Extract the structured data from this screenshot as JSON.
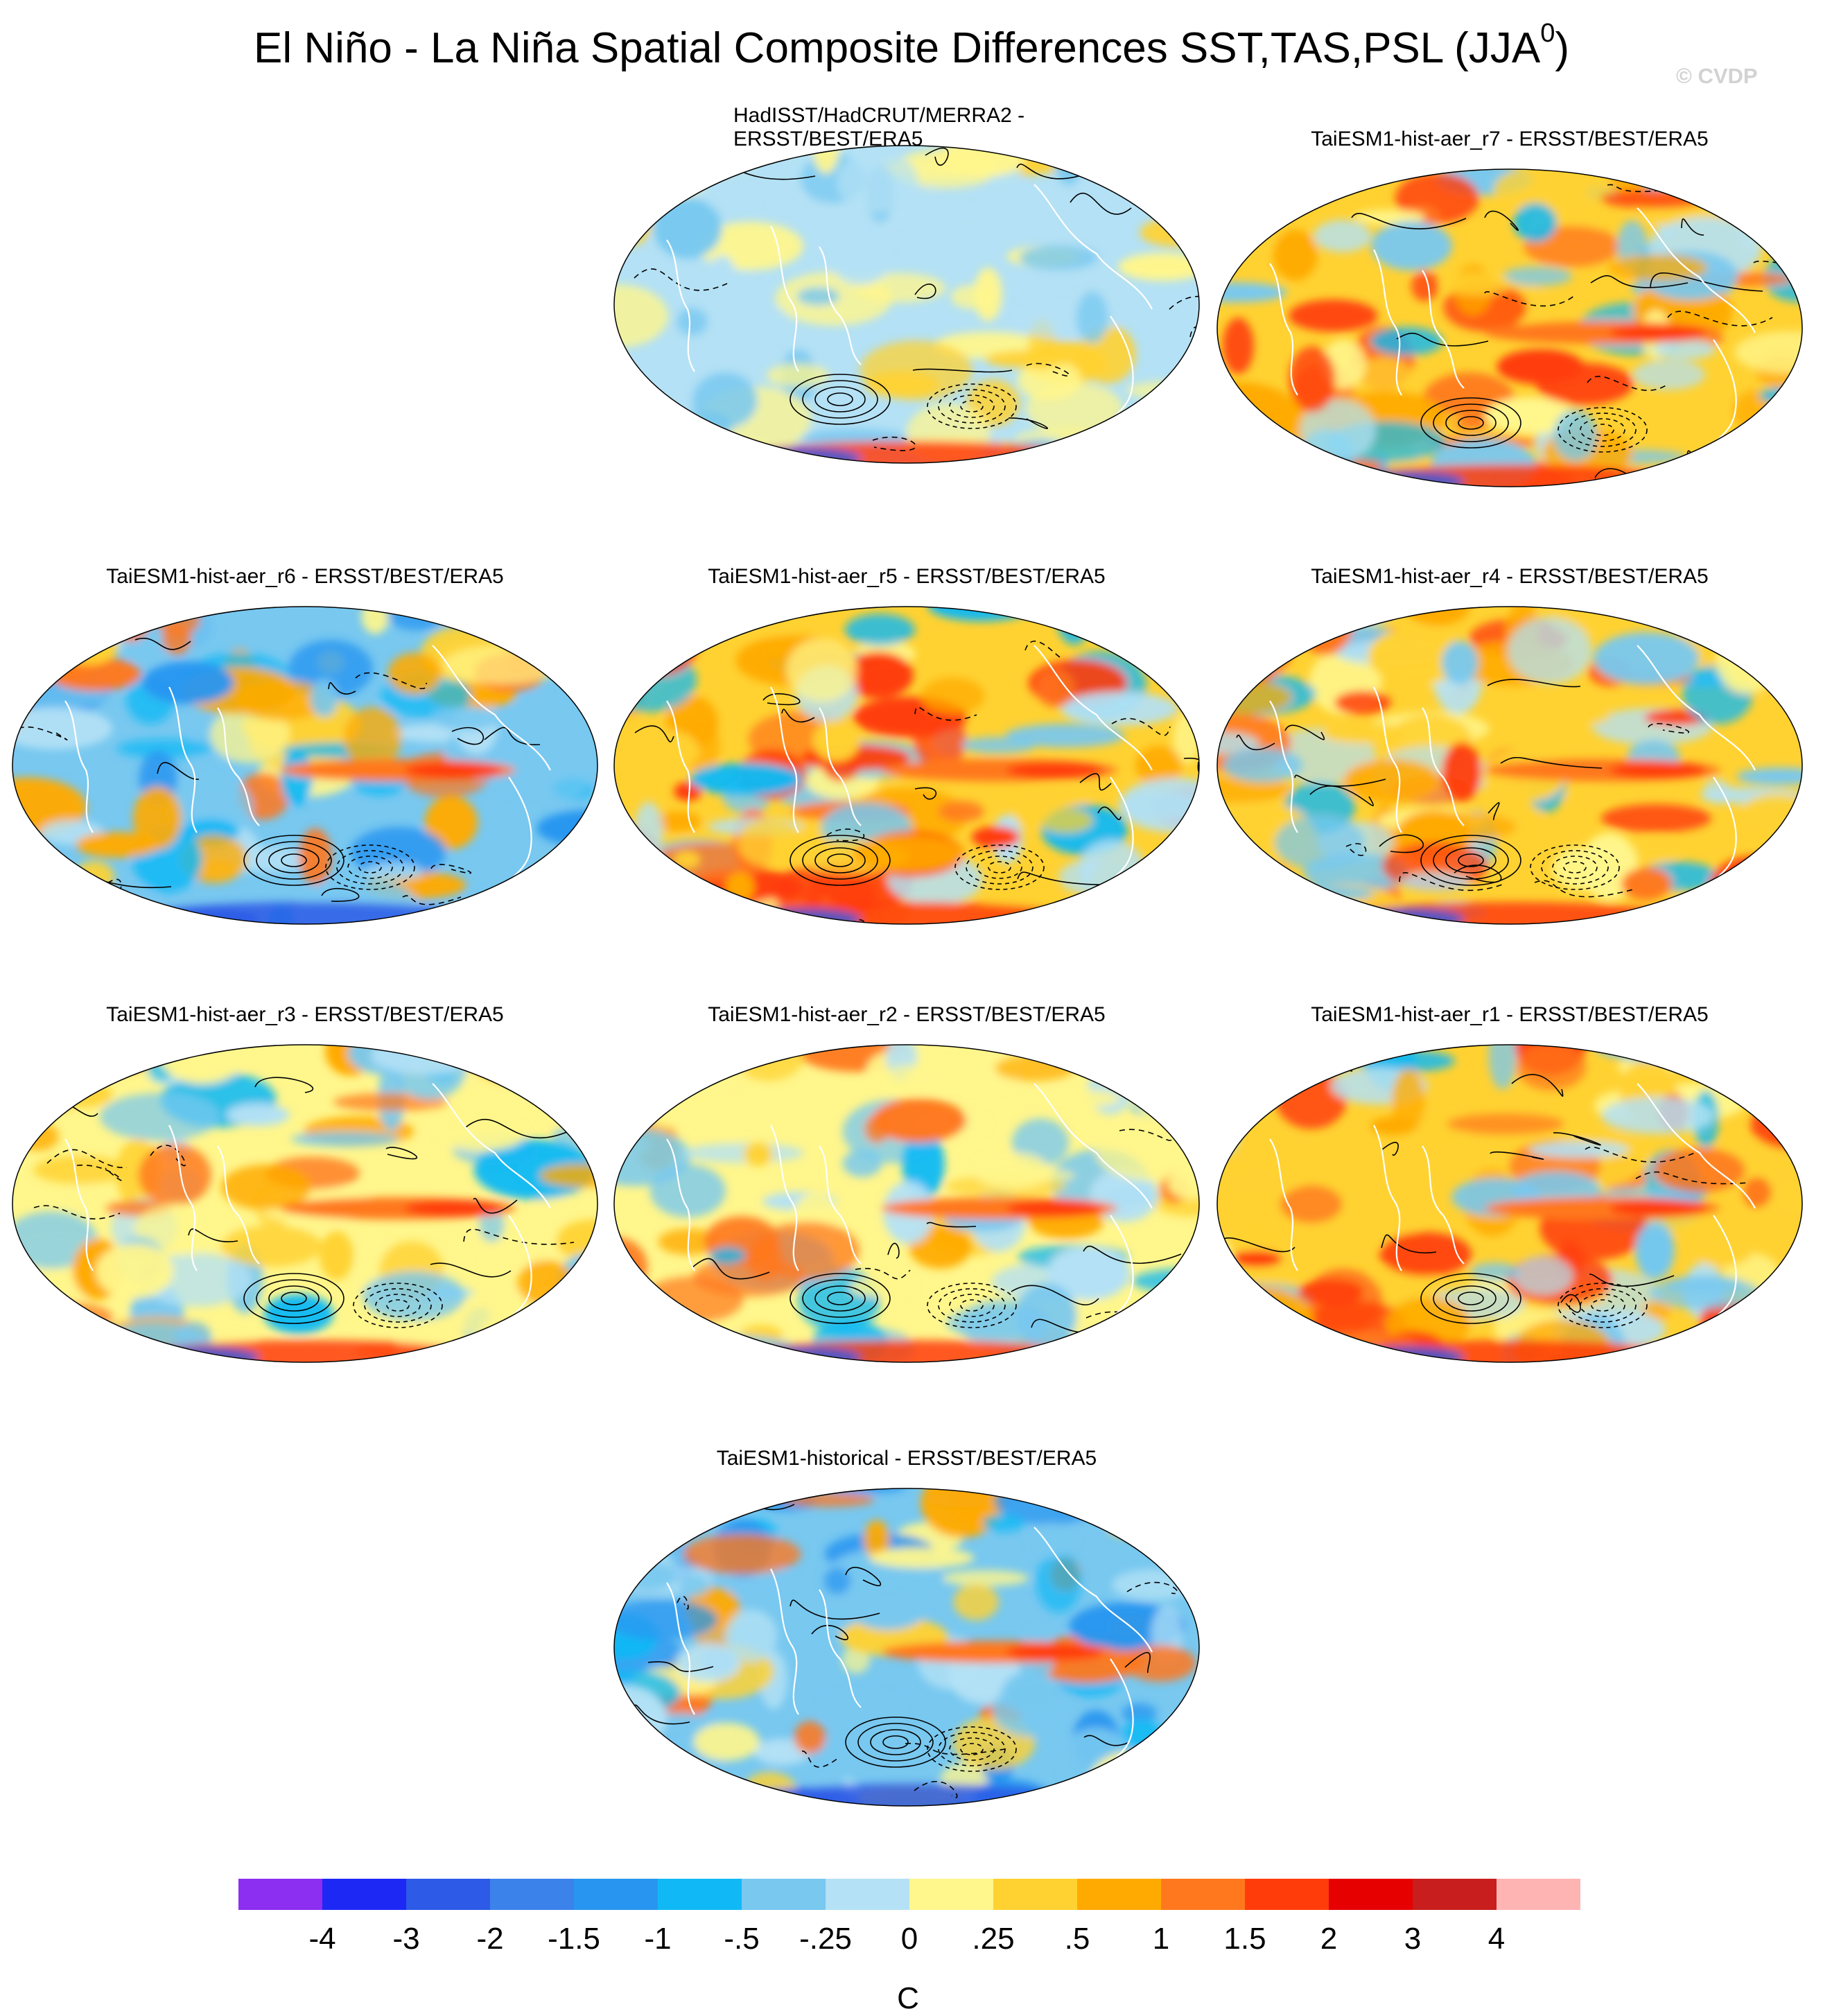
{
  "title": {
    "main": "El Niño - La Niña Spatial Composite Differences SST,TAS,PSL (JJA",
    "superscript": "0",
    "suffix": ")"
  },
  "credit": "© CVDP",
  "panels": [
    {
      "title": "HadISST/HadCRUT/MERRA2 -",
      "title_line2": "ERSST/BEST/ERA5",
      "pattern": "obs"
    },
    {
      "title": "TaiESM1-hist-aer_r7 - ERSST/BEST/ERA5",
      "pattern": "warm"
    },
    {
      "title": "TaiESM1-hist-aer_r6 - ERSST/BEST/ERA5",
      "pattern": "cool"
    },
    {
      "title": "TaiESM1-hist-aer_r5 - ERSST/BEST/ERA5",
      "pattern": "warm"
    },
    {
      "title": "TaiESM1-hist-aer_r4 - ERSST/BEST/ERA5",
      "pattern": "warm"
    },
    {
      "title": "TaiESM1-hist-aer_r3 - ERSST/BEST/ERA5",
      "pattern": "mixed"
    },
    {
      "title": "TaiESM1-hist-aer_r2 - ERSST/BEST/ERA5",
      "pattern": "mixed"
    },
    {
      "title": "TaiESM1-hist-aer_r1 - ERSST/BEST/ERA5",
      "pattern": "warm"
    },
    {
      "title": "TaiESM1-historical - ERSST/BEST/ERA5",
      "pattern": "cool"
    }
  ],
  "colorbar": {
    "unit": "C",
    "colors": [
      "#8c2ff0",
      "#1e28f5",
      "#2d5ae6",
      "#3c82eb",
      "#2896f0",
      "#10b9f5",
      "#78c8f0",
      "#b4e1f5",
      "#fff68c",
      "#ffd232",
      "#ffaa00",
      "#ff781e",
      "#ff3c0a",
      "#e60000",
      "#c81e1e",
      "#ffb4b4"
    ],
    "labels": [
      "-4",
      "-3",
      "-2",
      "-1.5",
      "-1",
      "-.5",
      "-.25",
      "0",
      ".25",
      ".5",
      "1",
      "1.5",
      "2",
      "3",
      "4"
    ]
  }
}
